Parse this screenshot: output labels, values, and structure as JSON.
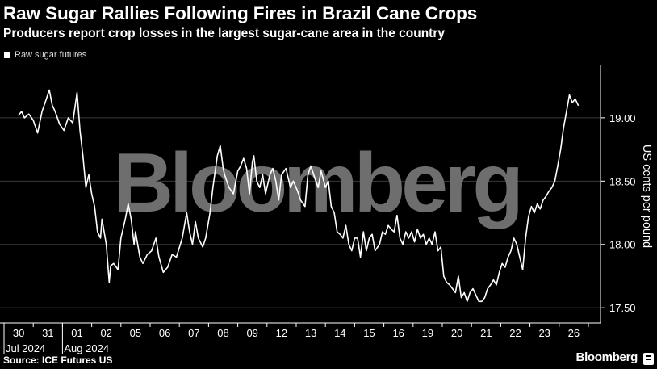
{
  "title": "Raw Sugar Rallies Following Fires in Brazil Cane Crops",
  "subtitle": "Producers report crop losses in the largest sugar-cane area in the country",
  "legend_label": "Raw sugar futures",
  "watermark": "Bloomberg",
  "footer": {
    "source": "Source: ICE Futures US",
    "brand": "Bloomberg"
  },
  "colors": {
    "background": "#000000",
    "line": "#ffffff",
    "grid": "#3a3a3a",
    "watermark": "#6e6e6e"
  },
  "chart_data": {
    "type": "line",
    "title": "Raw Sugar Rallies Following Fires in Brazil Cane Crops",
    "subtitle": "Producers report crop losses in the largest sugar-cane area in the country",
    "ylabel": "US cents per pound",
    "xlabel": "",
    "ylim": [
      17.38,
      19.42
    ],
    "yticks": [
      17.5,
      18.0,
      18.5,
      19.0
    ],
    "ytick_labels": [
      "17.50",
      "18.00",
      "18.50",
      "19.00"
    ],
    "grid": true,
    "legend": "top-left",
    "x_tick_labels": [
      "30",
      "31",
      "01",
      "02",
      "05",
      "06",
      "07",
      "08",
      "09",
      "12",
      "13",
      "14",
      "15",
      "16",
      "19",
      "20",
      "21",
      "22",
      "23",
      "26"
    ],
    "x_group_labels": [
      {
        "label": "Jul 2024",
        "start_index": 0
      },
      {
        "label": "Aug 2024",
        "start_index": 2
      }
    ],
    "series": [
      {
        "name": "Raw sugar futures",
        "values": [
          [
            0.0,
            19.02
          ],
          [
            0.1,
            19.05
          ],
          [
            0.2,
            19.0
          ],
          [
            0.35,
            19.03
          ],
          [
            0.5,
            18.98
          ],
          [
            0.65,
            18.88
          ],
          [
            0.8,
            19.05
          ],
          [
            0.95,
            19.15
          ],
          [
            1.05,
            19.22
          ],
          [
            1.15,
            19.1
          ],
          [
            1.25,
            19.05
          ],
          [
            1.4,
            18.95
          ],
          [
            1.55,
            18.9
          ],
          [
            1.7,
            19.0
          ],
          [
            1.85,
            18.96
          ],
          [
            2.0,
            19.2
          ],
          [
            2.1,
            18.9
          ],
          [
            2.2,
            18.7
          ],
          [
            2.3,
            18.45
          ],
          [
            2.4,
            18.55
          ],
          [
            2.5,
            18.4
          ],
          [
            2.6,
            18.3
          ],
          [
            2.7,
            18.1
          ],
          [
            2.8,
            18.05
          ],
          [
            2.85,
            18.2
          ],
          [
            3.0,
            18.0
          ],
          [
            3.1,
            17.7
          ],
          [
            3.15,
            17.83
          ],
          [
            3.25,
            17.85
          ],
          [
            3.4,
            17.8
          ],
          [
            3.5,
            18.05
          ],
          [
            3.65,
            18.2
          ],
          [
            3.75,
            18.32
          ],
          [
            3.85,
            18.2
          ],
          [
            3.95,
            18.0
          ],
          [
            4.0,
            18.1
          ],
          [
            4.15,
            17.9
          ],
          [
            4.25,
            17.85
          ],
          [
            4.4,
            17.92
          ],
          [
            4.55,
            17.95
          ],
          [
            4.7,
            18.05
          ],
          [
            4.8,
            17.9
          ],
          [
            4.95,
            17.78
          ],
          [
            5.1,
            17.82
          ],
          [
            5.25,
            17.92
          ],
          [
            5.4,
            17.9
          ],
          [
            5.6,
            18.05
          ],
          [
            5.75,
            18.25
          ],
          [
            5.85,
            18.1
          ],
          [
            5.95,
            18.0
          ],
          [
            6.05,
            18.18
          ],
          [
            6.15,
            18.05
          ],
          [
            6.3,
            17.98
          ],
          [
            6.4,
            18.05
          ],
          [
            6.55,
            18.25
          ],
          [
            6.65,
            18.45
          ],
          [
            6.8,
            18.7
          ],
          [
            6.9,
            18.78
          ],
          [
            7.0,
            18.6
          ],
          [
            7.05,
            18.55
          ],
          [
            7.2,
            18.45
          ],
          [
            7.35,
            18.4
          ],
          [
            7.5,
            18.58
          ],
          [
            7.6,
            18.62
          ],
          [
            7.7,
            18.68
          ],
          [
            7.8,
            18.6
          ],
          [
            7.9,
            18.4
          ],
          [
            8.0,
            18.65
          ],
          [
            8.05,
            18.7
          ],
          [
            8.15,
            18.5
          ],
          [
            8.25,
            18.45
          ],
          [
            8.35,
            18.55
          ],
          [
            8.45,
            18.4
          ],
          [
            8.6,
            18.55
          ],
          [
            8.7,
            18.6
          ],
          [
            8.8,
            18.5
          ],
          [
            8.9,
            18.35
          ],
          [
            9.0,
            18.55
          ],
          [
            9.15,
            18.6
          ],
          [
            9.3,
            18.45
          ],
          [
            9.4,
            18.5
          ],
          [
            9.55,
            18.42
          ],
          [
            9.65,
            18.35
          ],
          [
            9.8,
            18.3
          ],
          [
            9.9,
            18.55
          ],
          [
            10.0,
            18.62
          ],
          [
            10.1,
            18.55
          ],
          [
            10.25,
            18.45
          ],
          [
            10.35,
            18.58
          ],
          [
            10.5,
            18.45
          ],
          [
            10.6,
            18.5
          ],
          [
            10.7,
            18.3
          ],
          [
            10.8,
            18.25
          ],
          [
            10.9,
            18.1
          ],
          [
            11.0,
            18.08
          ],
          [
            11.1,
            18.05
          ],
          [
            11.2,
            18.15
          ],
          [
            11.3,
            18.0
          ],
          [
            11.4,
            17.95
          ],
          [
            11.5,
            18.05
          ],
          [
            11.6,
            18.05
          ],
          [
            11.7,
            17.9
          ],
          [
            11.8,
            18.1
          ],
          [
            11.9,
            17.95
          ],
          [
            12.0,
            18.05
          ],
          [
            12.1,
            18.08
          ],
          [
            12.2,
            17.95
          ],
          [
            12.35,
            18.0
          ],
          [
            12.45,
            18.1
          ],
          [
            12.55,
            18.08
          ],
          [
            12.65,
            18.15
          ],
          [
            12.75,
            18.12
          ],
          [
            12.85,
            18.1
          ],
          [
            12.95,
            18.23
          ],
          [
            13.05,
            18.05
          ],
          [
            13.15,
            18.0
          ],
          [
            13.25,
            18.1
          ],
          [
            13.35,
            18.05
          ],
          [
            13.45,
            18.1
          ],
          [
            13.55,
            18.02
          ],
          [
            13.65,
            18.12
          ],
          [
            13.75,
            18.05
          ],
          [
            13.85,
            18.08
          ],
          [
            13.95,
            18.0
          ],
          [
            14.05,
            18.05
          ],
          [
            14.15,
            18.0
          ],
          [
            14.25,
            18.1
          ],
          [
            14.35,
            17.95
          ],
          [
            14.45,
            17.98
          ],
          [
            14.55,
            17.75
          ],
          [
            14.65,
            17.7
          ],
          [
            14.75,
            17.68
          ],
          [
            14.85,
            17.65
          ],
          [
            14.95,
            17.62
          ],
          [
            15.05,
            17.75
          ],
          [
            15.15,
            17.58
          ],
          [
            15.25,
            17.62
          ],
          [
            15.35,
            17.55
          ],
          [
            15.45,
            17.62
          ],
          [
            15.55,
            17.65
          ],
          [
            15.65,
            17.6
          ],
          [
            15.75,
            17.55
          ],
          [
            15.85,
            17.55
          ],
          [
            15.95,
            17.58
          ],
          [
            16.05,
            17.65
          ],
          [
            16.15,
            17.68
          ],
          [
            16.25,
            17.72
          ],
          [
            16.35,
            17.68
          ],
          [
            16.45,
            17.78
          ],
          [
            16.55,
            17.85
          ],
          [
            16.65,
            17.82
          ],
          [
            16.75,
            17.9
          ],
          [
            16.85,
            17.95
          ],
          [
            16.95,
            18.05
          ],
          [
            17.05,
            18.0
          ],
          [
            17.15,
            17.9
          ],
          [
            17.25,
            17.8
          ],
          [
            17.35,
            18.05
          ],
          [
            17.45,
            18.22
          ],
          [
            17.55,
            18.3
          ],
          [
            17.65,
            18.25
          ],
          [
            17.75,
            18.32
          ],
          [
            17.85,
            18.28
          ],
          [
            17.95,
            18.35
          ],
          [
            18.05,
            18.38
          ],
          [
            18.15,
            18.42
          ],
          [
            18.25,
            18.45
          ],
          [
            18.35,
            18.5
          ],
          [
            18.45,
            18.62
          ],
          [
            18.55,
            18.75
          ],
          [
            18.65,
            18.92
          ],
          [
            18.75,
            19.05
          ],
          [
            18.85,
            19.18
          ],
          [
            18.95,
            19.12
          ],
          [
            19.05,
            19.15
          ],
          [
            19.15,
            19.1
          ]
        ]
      }
    ]
  }
}
